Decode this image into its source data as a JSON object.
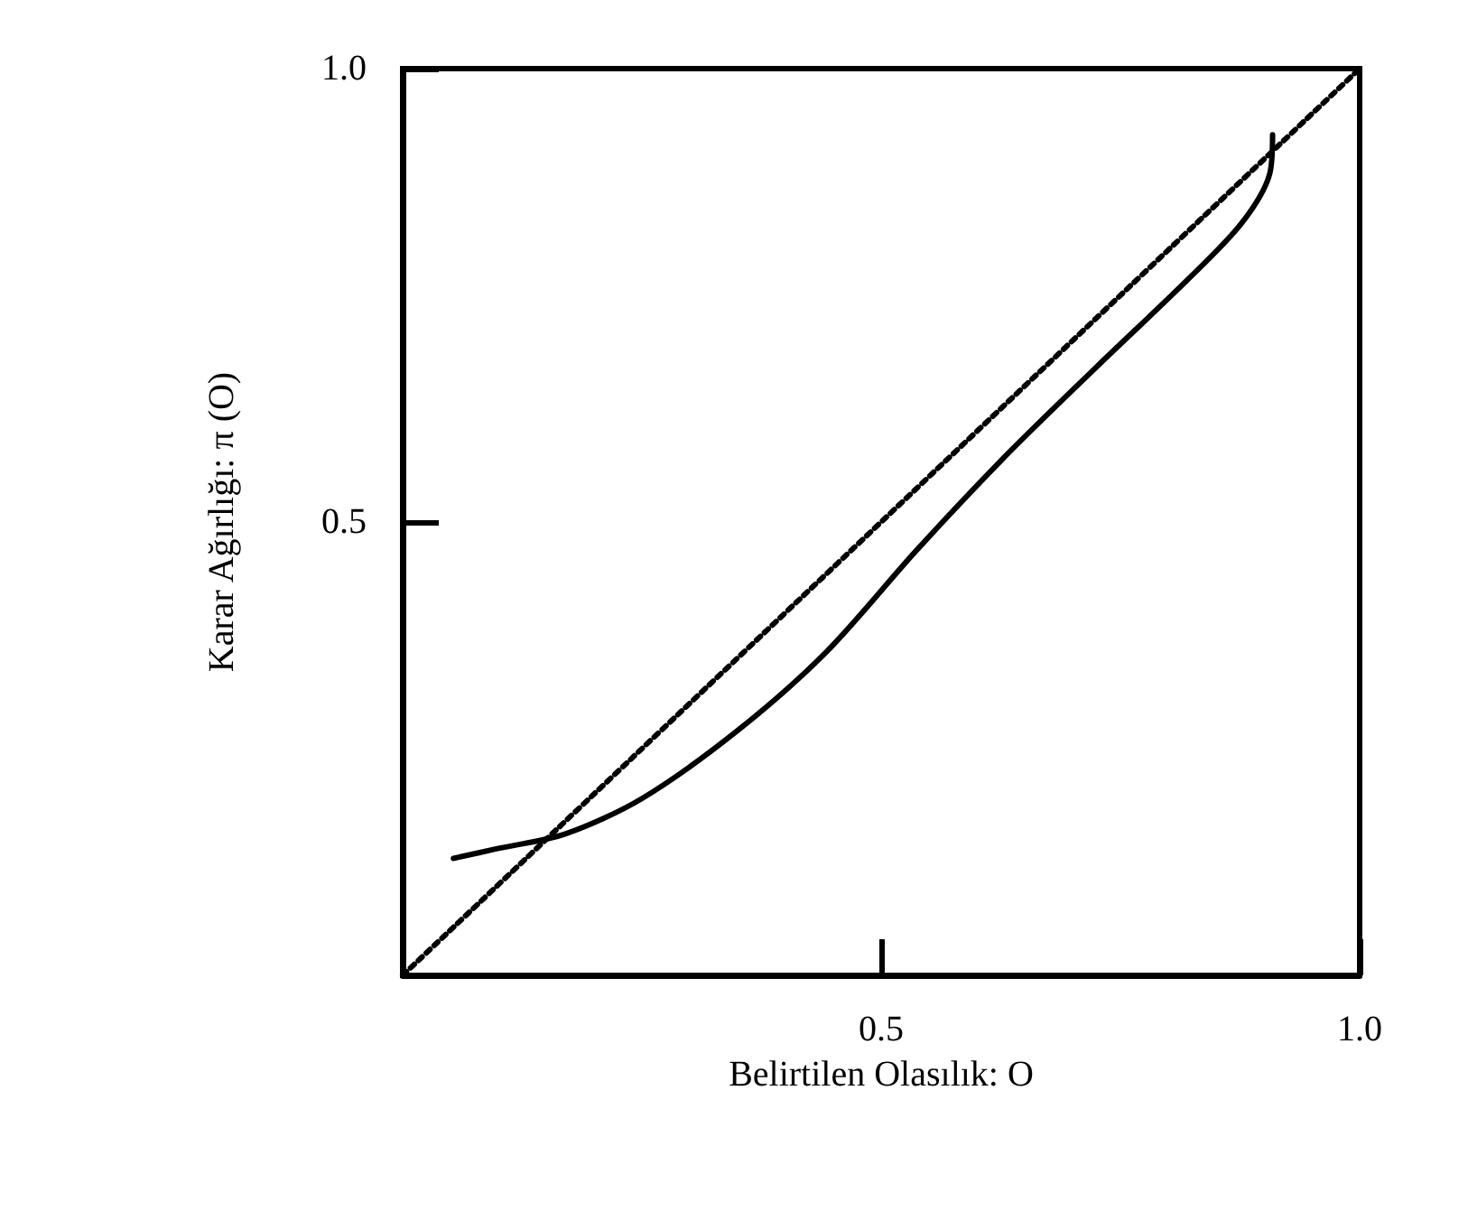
{
  "chart_data": {
    "type": "line",
    "xlabel": "Belirtilen Olasılık: O",
    "ylabel": "Karar Ağırlığı: π (O)",
    "xlim": [
      0,
      1
    ],
    "ylim": [
      0,
      1
    ],
    "xticks": [
      0.5,
      {
        "value": 1,
        "label": "1.0"
      }
    ],
    "yticks": [
      0.5,
      {
        "value": 1,
        "label": "1.0"
      }
    ],
    "grid": false,
    "marker": "none",
    "series": [
      {
        "color": "#000000",
        "line_style": "solid",
        "x": [
          0.053,
          0.1,
          0.17,
          0.25,
          0.35,
          0.443,
          0.538,
          0.632,
          0.726,
          0.821,
          0.877,
          0.906,
          0.909
        ],
        "values": [
          0.129,
          0.14,
          0.156,
          0.195,
          0.27,
          0.357,
          0.47,
          0.575,
          0.672,
          0.768,
          0.83,
          0.884,
          0.927
        ]
      },
      {
        "color": "#000000",
        "line_style": "dotted",
        "x": [
          0,
          1
        ],
        "values": [
          0,
          1
        ]
      }
    ]
  }
}
